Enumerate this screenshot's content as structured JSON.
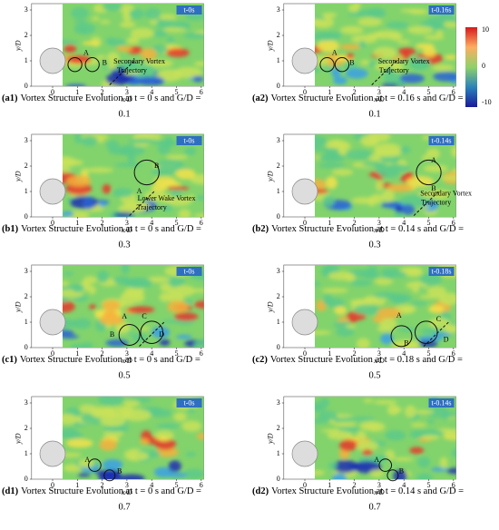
{
  "figure": {
    "colorbar": {
      "ticks": [
        10,
        0,
        -10
      ]
    },
    "x_label": "x/D",
    "y_label": "y/D",
    "xticks": [
      0,
      1,
      2,
      3,
      4,
      5,
      6
    ],
    "yticks": [
      0,
      1,
      2,
      3
    ],
    "panels": [
      {
        "time": "t-0s",
        "label": "(a1)",
        "caption": "Vortex Structure Evolution at t = 0 s and G/D =",
        "caption2": "0.1",
        "annotations": [
          "A",
          "B",
          "Secondary Vortex",
          "Trajectory"
        ]
      },
      {
        "time": "t-0.16s",
        "label": "(a2)",
        "caption": "Vortex Structure Evolution at t = 0.16 s and G/D =",
        "caption2": "0.1",
        "annotations": [
          "A",
          "B",
          "Secondary Vortex",
          "Trajectory"
        ]
      },
      {
        "time": "t-0s",
        "label": "(b1)",
        "caption": "Vortex Structure Evolution at t = 0 s and G/D =",
        "caption2": "0.3",
        "annotations": [
          "B",
          "A",
          "Lower Wake Vortex",
          "Trajectory"
        ]
      },
      {
        "time": "t-0.14s",
        "label": "(b2)",
        "caption": "Vortex Structure Evolution at t = 0.14 s and G/D =",
        "caption2": "0.3",
        "annotations": [
          "A",
          "B",
          "Secondary Vortex",
          "Trajectory"
        ]
      },
      {
        "time": "t-0s",
        "label": "(c1)",
        "caption": "Vortex Structure Evolution at t = 0 s and G/D =",
        "caption2": "0.5",
        "annotations": [
          "A",
          "B",
          "C",
          "D"
        ]
      },
      {
        "time": "t-0.18s",
        "label": "(c2)",
        "caption": "Vortex Structure Evolution at t = 0.18 s and G/D =",
        "caption2": "0.5",
        "annotations": [
          "A",
          "B",
          "C",
          "D"
        ]
      },
      {
        "time": "t-0s",
        "label": "(d1)",
        "caption": "Vortex Structure Evolution at t = 0 s and G/D =",
        "caption2": "0.7",
        "annotations": [
          "A",
          "B"
        ]
      },
      {
        "time": "t-0.14s",
        "label": "(d2)",
        "caption": "Vortex Structure Evolution at t = 0.14 s and G/D =",
        "caption2": "0.7",
        "annotations": [
          "A",
          "B"
        ]
      }
    ]
  }
}
